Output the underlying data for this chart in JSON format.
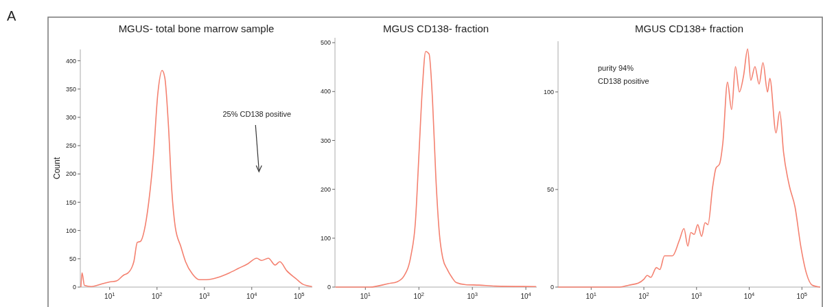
{
  "chart_data": [
    {
      "type": "line",
      "title": "MGUS-  total bone marrow sample",
      "ylabel": "Count",
      "log": "x",
      "xlim": [
        2.4,
        190000
      ],
      "ylim": [
        0,
        420
      ],
      "xticks": [
        {
          "value": 10,
          "label": "10$^{1}$"
        },
        {
          "value": 100,
          "label": "10$^{2}$"
        },
        {
          "value": 1000,
          "label": "10$^{3}$"
        },
        {
          "value": 10000,
          "label": "10$^{4}$"
        },
        {
          "value": 100000,
          "label": "10$^{5}$"
        }
      ],
      "yticks": [
        0,
        50,
        100,
        150,
        200,
        250,
        300,
        350,
        400
      ],
      "grid": false,
      "marker": "none",
      "line_style": "solid",
      "annotations": [
        "A",
        "25% CD138  positive"
      ],
      "series": [
        {
          "color": "#f4806f",
          "x": [
            2.47,
            2.61,
            2.93,
            4.1,
            7.1,
            10,
            14,
            19.6,
            24.4,
            32.4,
            38.3,
            45.2,
            53.5,
            66.8,
            83.6,
            104,
            128,
            146,
            173,
            205,
            242,
            320,
            400,
            560,
            782,
            1094,
            1914,
            3345,
            5224,
            8180,
            12790,
            16000,
            22400,
            31300,
            39100,
            54700,
            85500,
            120000,
            187000
          ],
          "values": [
            0,
            25,
            3,
            1,
            6,
            9,
            11,
            21,
            25,
            45,
            79,
            81,
            99,
            150,
            230,
            342,
            383,
            370,
            290,
            171,
            107,
            71,
            45,
            23,
            13,
            13,
            17,
            25,
            33,
            41,
            51,
            47,
            51,
            39,
            45,
            29,
            15,
            5,
            1
          ]
        }
      ]
    },
    {
      "type": "line",
      "title": "MGUS  CD138-   fraction",
      "log": "x",
      "xlim": [
        2.7,
        16000
      ],
      "ylim": [
        0,
        510
      ],
      "xticks": [
        {
          "value": 10,
          "label": "10$^{1}$"
        },
        {
          "value": 100,
          "label": "10$^{2}$"
        },
        {
          "value": 1000,
          "label": "10$^{3}$"
        },
        {
          "value": 10000,
          "label": "10$^{4}$"
        }
      ],
      "yticks": [
        0,
        100,
        200,
        300,
        400,
        500
      ],
      "grid": false,
      "marker": "none",
      "line_style": "solid",
      "series": [
        {
          "color": "#f4806f",
          "x": [
            2.74,
            12.2,
            26.7,
            39.5,
            52.9,
            71,
            86,
            100,
            116,
            134,
            155,
            180,
            208,
            242,
            280,
            340,
            414,
            503,
            745,
            1343,
            2670,
            15500
          ],
          "values": [
            0,
            0,
            7,
            11,
            23,
            64,
            132,
            268,
            405,
            482,
            477,
            382,
            223,
            109,
            59,
            36,
            20,
            9,
            5,
            4,
            2,
            1
          ]
        }
      ]
    },
    {
      "type": "line",
      "title": "MGUS  CD138+  fraction",
      "log": "x",
      "xlim": [
        2.35,
        223000
      ],
      "ylim": [
        0,
        126
      ],
      "xticks": [
        {
          "value": 10,
          "label": "10$^{1}$"
        },
        {
          "value": 100,
          "label": "10$^{2}$"
        },
        {
          "value": 1000,
          "label": "10$^{3}$"
        },
        {
          "value": 10000,
          "label": "10$^{4}$"
        },
        {
          "value": 100000,
          "label": "10$^{5}$"
        }
      ],
      "yticks": [
        0,
        50,
        100
      ],
      "grid": false,
      "marker": "none",
      "line_style": "solid",
      "annotations": [
        "purity 94%\nCD138  positive"
      ],
      "series": [
        {
          "color": "#f4806f",
          "x": [
            2.35,
            10.5,
            35,
            52,
            78,
            100,
            116,
            135,
            173,
            201,
            246,
            349,
            472,
            577,
            684,
            778,
            905,
            1052,
            1248,
            1450,
            1650,
            2014,
            2342,
            2723,
            3162,
            3866,
            4625,
            5480,
            6500,
            7780,
            9330,
            10720,
            12850,
            15380,
            18240,
            22280,
            24600,
            32270,
            37850,
            44870,
            57650,
            74100,
            95100,
            122000,
            157000,
            223000
          ],
          "values": [
            0,
            0,
            0,
            1,
            2,
            4,
            6,
            5,
            10,
            9,
            16,
            16,
            24,
            30,
            21,
            28,
            27,
            32,
            26,
            33,
            32,
            51,
            61,
            63,
            74,
            105,
            91,
            113,
            100,
            108,
            122,
            106,
            113,
            104,
            115,
            100,
            107,
            79,
            90,
            69,
            52,
            41,
            21,
            7,
            1,
            0
          ]
        }
      ]
    }
  ]
}
